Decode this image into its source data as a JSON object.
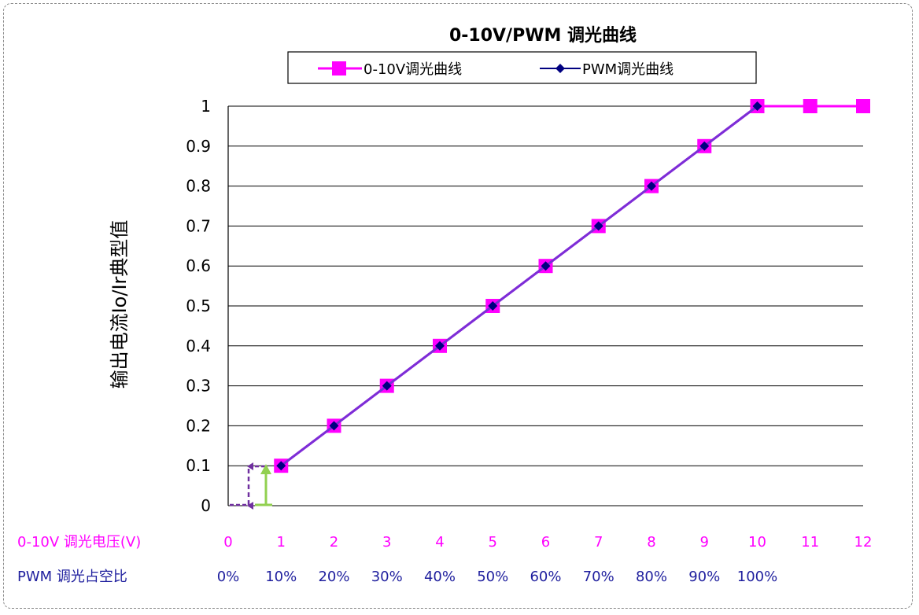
{
  "chart_data": {
    "type": "line",
    "title": "0-10V/PWM 调光曲线",
    "ylabel": "输出电流Io/Ir典型值",
    "x_axis_1_label": "0-10V 调光电压(V)",
    "x_axis_2_label": "PWM 调光占空比",
    "x_ticks_1": [
      "0",
      "1",
      "2",
      "3",
      "4",
      "5",
      "6",
      "7",
      "8",
      "9",
      "10",
      "11",
      "12"
    ],
    "x_ticks_2": [
      "0%",
      "10%",
      "20%",
      "30%",
      "40%",
      "50%",
      "60%",
      "70%",
      "80%",
      "90%",
      "100%"
    ],
    "y_ticks": [
      "0",
      "0.1",
      "0.2",
      "0.3",
      "0.4",
      "0.5",
      "0.6",
      "0.7",
      "0.8",
      "0.9",
      "1"
    ],
    "xlim": [
      0,
      12
    ],
    "ylim": [
      0,
      1
    ],
    "grid": "horizontal",
    "legend": "top",
    "series": [
      {
        "name": "0-10V调光曲线",
        "color": "#ff00ff",
        "marker": "square",
        "x": [
          1,
          2,
          3,
          4,
          5,
          6,
          7,
          8,
          9,
          10,
          11,
          12
        ],
        "y": [
          0.1,
          0.2,
          0.3,
          0.4,
          0.5,
          0.6,
          0.7,
          0.8,
          0.9,
          1,
          1,
          1
        ]
      },
      {
        "name": "PWM调光曲线",
        "color": "#000080",
        "marker": "diamond",
        "x": [
          1,
          2,
          3,
          4,
          5,
          6,
          7,
          8,
          9,
          10
        ],
        "y": [
          0.1,
          0.2,
          0.3,
          0.4,
          0.5,
          0.6,
          0.7,
          0.8,
          0.9,
          1
        ]
      }
    ],
    "colors": {
      "axis1_text": "#ff00ff",
      "axis2_text": "#1f1f9e",
      "overlay_line": "#7b2fd6",
      "annotation_dashed": "#7030a0",
      "annotation_green": "#92d050"
    }
  }
}
